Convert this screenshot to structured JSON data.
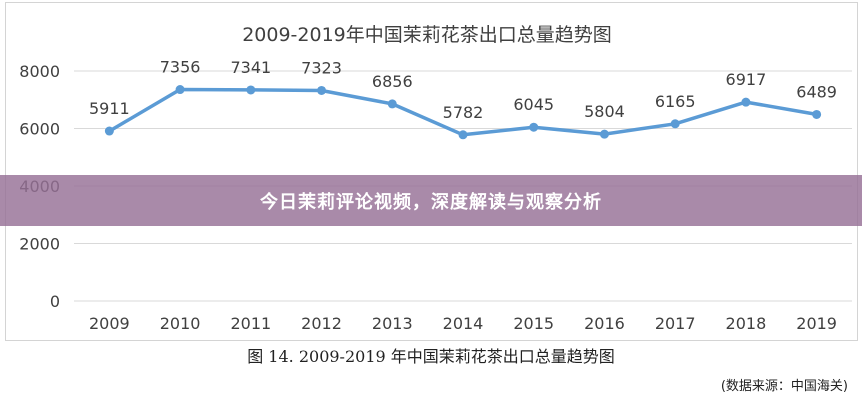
{
  "banner": {
    "text": "今日茉莉评论视频，深度解读与观察分析"
  },
  "caption": "图 14. 2009-2019 年中国茉莉花茶出口总量趋势图",
  "source": "(数据来源：中国海关)",
  "colors": {
    "line": "#5b9bd5",
    "grid": "#d9d9d9",
    "text": "#404040",
    "banner": "#966f96"
  },
  "chart_data": {
    "type": "line",
    "title": "2009-2019年中国茉莉花茶出口总量趋势图",
    "xlabel": "",
    "ylabel": "",
    "categories": [
      "2009",
      "2010",
      "2011",
      "2012",
      "2013",
      "2014",
      "2015",
      "2016",
      "2017",
      "2018",
      "2019"
    ],
    "series": [
      {
        "values": [
          5911,
          7356,
          7341,
          7323,
          6856,
          5782,
          6045,
          5804,
          6165,
          6917,
          6489
        ]
      }
    ],
    "data_labels": [
      "5911",
      "7356",
      "7341",
      "7323",
      "6856",
      "5782",
      "6045",
      "5804",
      "6165",
      "6917",
      "6489"
    ],
    "yticks": [
      0,
      2000,
      4000,
      6000,
      8000
    ],
    "ylim": [
      0,
      8000
    ],
    "grid": true,
    "legend": "none"
  }
}
